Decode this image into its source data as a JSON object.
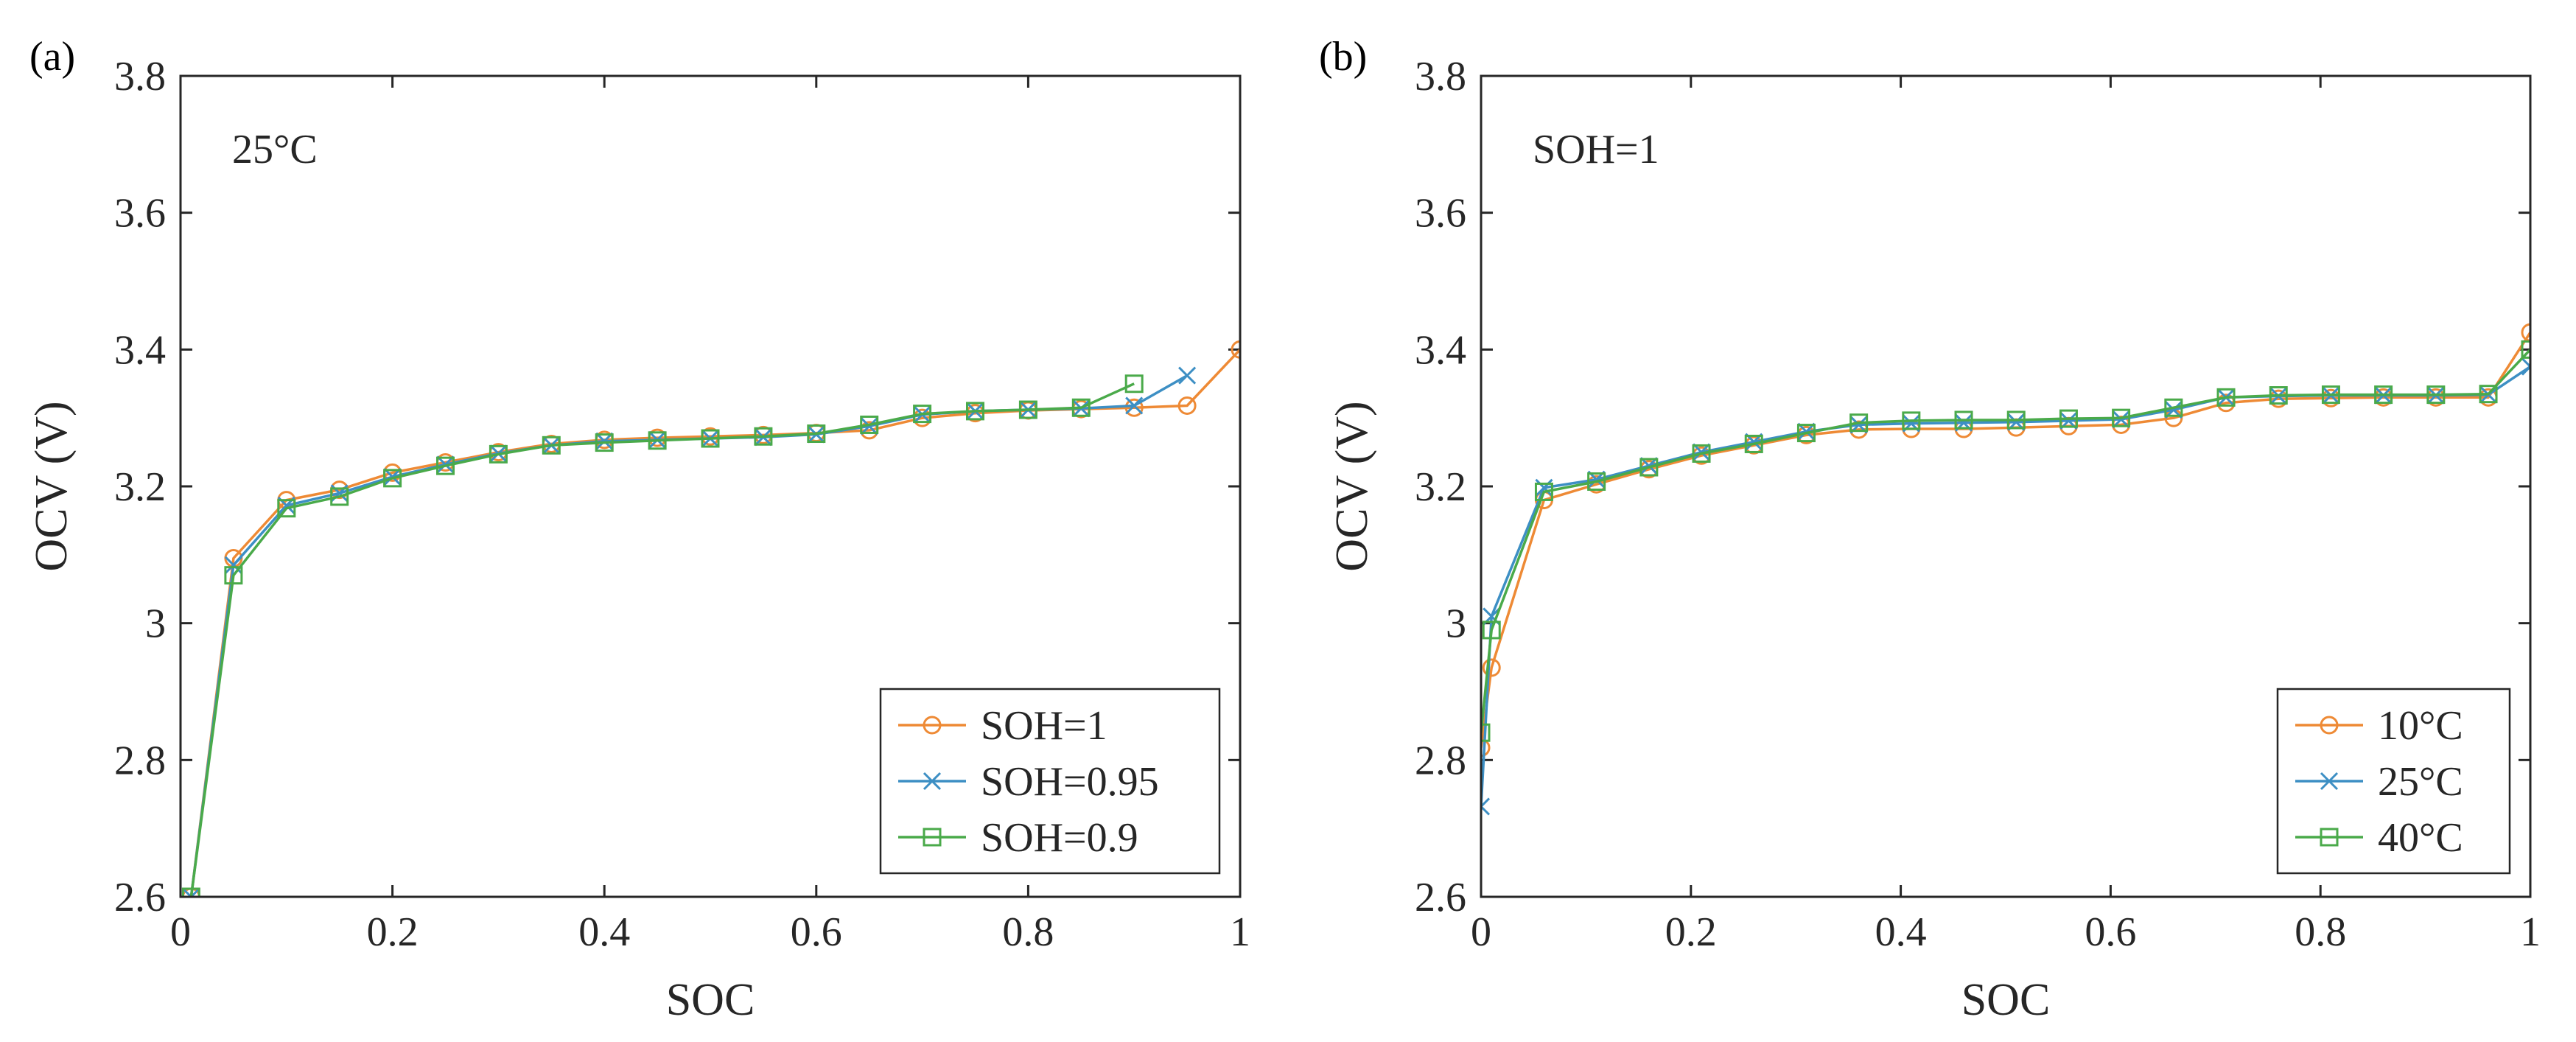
{
  "colors": {
    "orange": "#EE8A35",
    "blue": "#3D8FC4",
    "green": "#4AAA4A",
    "axis": "#262626"
  },
  "chart_data": [
    {
      "type": "line",
      "panel_label": "(a)",
      "annotation": "25°C",
      "xlabel": "SOC",
      "ylabel": "OCV (V)",
      "xlim": [
        0,
        1
      ],
      "ylim": [
        2.6,
        3.8
      ],
      "xticks": [
        0,
        0.2,
        0.4,
        0.6,
        0.8,
        1
      ],
      "xtick_labels": [
        "0",
        "0.2",
        "0.4",
        "0.6",
        "0.8",
        "1"
      ],
      "yticks": [
        2.6,
        2.8,
        3.0,
        3.2,
        3.4,
        3.6,
        3.8
      ],
      "ytick_labels": [
        "2.6",
        "2.8",
        "3",
        "3.2",
        "3.4",
        "3.6",
        "3.8"
      ],
      "grid": false,
      "legend_position": "bottom-right",
      "series": [
        {
          "name": "SOH=1",
          "color": "#EE8A35",
          "marker": "circle",
          "points": [
            [
              0.01,
              2.6
            ],
            [
              0.05,
              3.095
            ],
            [
              0.1,
              3.18
            ],
            [
              0.15,
              3.195
            ],
            [
              0.2,
              3.22
            ],
            [
              0.25,
              3.235
            ],
            [
              0.3,
              3.25
            ],
            [
              0.35,
              3.262
            ],
            [
              0.4,
              3.268
            ],
            [
              0.45,
              3.271
            ],
            [
              0.5,
              3.273
            ],
            [
              0.55,
              3.275
            ],
            [
              0.6,
              3.278
            ],
            [
              0.65,
              3.282
            ],
            [
              0.7,
              3.3
            ],
            [
              0.75,
              3.307
            ],
            [
              0.8,
              3.311
            ],
            [
              0.85,
              3.313
            ],
            [
              0.9,
              3.315
            ],
            [
              0.95,
              3.318
            ],
            [
              1.0,
              3.4
            ]
          ]
        },
        {
          "name": "SOH=0.95",
          "color": "#3D8FC4",
          "marker": "x",
          "points": [
            [
              0.01,
              2.6
            ],
            [
              0.05,
              3.085
            ],
            [
              0.1,
              3.172
            ],
            [
              0.15,
              3.19
            ],
            [
              0.2,
              3.214
            ],
            [
              0.25,
              3.232
            ],
            [
              0.3,
              3.248
            ],
            [
              0.35,
              3.26
            ],
            [
              0.4,
              3.266
            ],
            [
              0.45,
              3.268
            ],
            [
              0.5,
              3.27
            ],
            [
              0.55,
              3.272
            ],
            [
              0.6,
              3.276
            ],
            [
              0.65,
              3.288
            ],
            [
              0.7,
              3.305
            ],
            [
              0.75,
              3.31
            ],
            [
              0.8,
              3.312
            ],
            [
              0.85,
              3.314
            ],
            [
              0.9,
              3.318
            ],
            [
              0.95,
              3.362
            ]
          ]
        },
        {
          "name": "SOH=0.9",
          "color": "#4AAA4A",
          "marker": "square",
          "points": [
            [
              0.01,
              2.6
            ],
            [
              0.05,
              3.07
            ],
            [
              0.1,
              3.168
            ],
            [
              0.15,
              3.185
            ],
            [
              0.2,
              3.212
            ],
            [
              0.25,
              3.23
            ],
            [
              0.3,
              3.247
            ],
            [
              0.35,
              3.26
            ],
            [
              0.4,
              3.264
            ],
            [
              0.45,
              3.267
            ],
            [
              0.5,
              3.27
            ],
            [
              0.55,
              3.273
            ],
            [
              0.6,
              3.277
            ],
            [
              0.65,
              3.29
            ],
            [
              0.7,
              3.306
            ],
            [
              0.75,
              3.31
            ],
            [
              0.8,
              3.312
            ],
            [
              0.85,
              3.315
            ],
            [
              0.9,
              3.35
            ]
          ]
        }
      ]
    },
    {
      "type": "line",
      "panel_label": "(b)",
      "annotation": "SOH=1",
      "xlabel": "SOC",
      "ylabel": "OCV (V)",
      "xlim": [
        0,
        1
      ],
      "ylim": [
        2.6,
        3.8
      ],
      "xticks": [
        0,
        0.2,
        0.4,
        0.6,
        0.8,
        1
      ],
      "xtick_labels": [
        "0",
        "0.2",
        "0.4",
        "0.6",
        "0.8",
        "1"
      ],
      "yticks": [
        2.6,
        2.8,
        3.0,
        3.2,
        3.4,
        3.6,
        3.8
      ],
      "ytick_labels": [
        "2.6",
        "2.8",
        "3",
        "3.2",
        "3.4",
        "3.6",
        "3.8"
      ],
      "grid": false,
      "legend_position": "bottom-right",
      "series": [
        {
          "name": "10°C",
          "color": "#EE8A35",
          "marker": "circle",
          "points": [
            [
              0,
              2.818
            ],
            [
              0.01,
              2.935
            ],
            [
              0.06,
              3.18
            ],
            [
              0.11,
              3.203
            ],
            [
              0.16,
              3.225
            ],
            [
              0.21,
              3.245
            ],
            [
              0.26,
              3.26
            ],
            [
              0.31,
              3.275
            ],
            [
              0.36,
              3.283
            ],
            [
              0.41,
              3.284
            ],
            [
              0.46,
              3.284
            ],
            [
              0.51,
              3.286
            ],
            [
              0.56,
              3.288
            ],
            [
              0.61,
              3.29
            ],
            [
              0.66,
              3.3
            ],
            [
              0.71,
              3.322
            ],
            [
              0.76,
              3.328
            ],
            [
              0.81,
              3.329
            ],
            [
              0.86,
              3.33
            ],
            [
              0.91,
              3.33
            ],
            [
              0.96,
              3.33
            ],
            [
              1.0,
              3.425
            ]
          ]
        },
        {
          "name": "25°C",
          "color": "#3D8FC4",
          "marker": "x",
          "points": [
            [
              0,
              2.732
            ],
            [
              0.01,
              3.01
            ],
            [
              0.06,
              3.198
            ],
            [
              0.11,
              3.21
            ],
            [
              0.16,
              3.23
            ],
            [
              0.21,
              3.25
            ],
            [
              0.26,
              3.265
            ],
            [
              0.31,
              3.28
            ],
            [
              0.36,
              3.29
            ],
            [
              0.41,
              3.292
            ],
            [
              0.46,
              3.293
            ],
            [
              0.51,
              3.294
            ],
            [
              0.56,
              3.296
            ],
            [
              0.61,
              3.298
            ],
            [
              0.66,
              3.312
            ],
            [
              0.71,
              3.33
            ],
            [
              0.76,
              3.332
            ],
            [
              0.81,
              3.333
            ],
            [
              0.86,
              3.333
            ],
            [
              0.91,
              3.333
            ],
            [
              0.96,
              3.334
            ],
            [
              1.0,
              3.375
            ]
          ]
        },
        {
          "name": "40°C",
          "color": "#4AAA4A",
          "marker": "square",
          "points": [
            [
              0,
              2.84
            ],
            [
              0.01,
              2.99
            ],
            [
              0.06,
              3.192
            ],
            [
              0.11,
              3.207
            ],
            [
              0.16,
              3.228
            ],
            [
              0.21,
              3.248
            ],
            [
              0.26,
              3.262
            ],
            [
              0.31,
              3.278
            ],
            [
              0.36,
              3.293
            ],
            [
              0.41,
              3.296
            ],
            [
              0.46,
              3.297
            ],
            [
              0.51,
              3.297
            ],
            [
              0.56,
              3.299
            ],
            [
              0.61,
              3.3
            ],
            [
              0.66,
              3.315
            ],
            [
              0.71,
              3.33
            ],
            [
              0.76,
              3.333
            ],
            [
              0.81,
              3.334
            ],
            [
              0.86,
              3.334
            ],
            [
              0.91,
              3.334
            ],
            [
              0.96,
              3.335
            ],
            [
              1.0,
              3.4
            ]
          ]
        }
      ]
    }
  ]
}
